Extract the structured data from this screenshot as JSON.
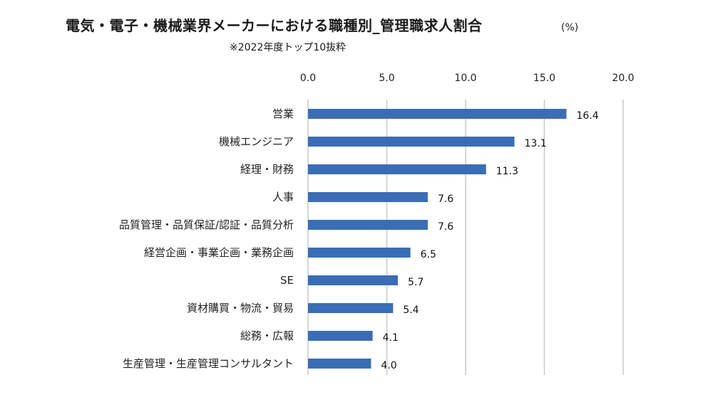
{
  "title": "電気・電子・機械業界メーカーにおける職種別_管理職求人割合",
  "unit": "(%)",
  "subtitle": "※2022年度トップ10抜粋",
  "colors": {
    "bar": "#3a6db5",
    "grid": "#c8c8c8"
  },
  "chart_data": {
    "type": "bar",
    "orientation": "horizontal",
    "title": "電気・電子・機械業界メーカーにおける職種別_管理職求人割合",
    "subtitle": "※2022年度トップ10抜粋",
    "xlabel": "(%)",
    "ylabel": "",
    "xlim": [
      0,
      20
    ],
    "x_ticks": [
      "0.0",
      "5.0",
      "10.0",
      "15.0",
      "20.0"
    ],
    "grid": true,
    "categories": [
      "営業",
      "機械エンジニア",
      "経理・財務",
      "人事",
      "品質管理・品質保証/認証・品質分析",
      "経営企画・事業企画・業務企画",
      "SE",
      "資材購買・物流・貿易",
      "総務・広報",
      "生産管理・生産管理コンサルタント"
    ],
    "values": [
      16.4,
      13.1,
      11.3,
      7.6,
      7.6,
      6.5,
      5.7,
      5.4,
      4.1,
      4.0
    ],
    "value_labels": [
      "16.4",
      "13.1",
      "11.3",
      "7.6",
      "7.6",
      "6.5",
      "5.7",
      "5.4",
      "4.1",
      "4.0"
    ]
  }
}
